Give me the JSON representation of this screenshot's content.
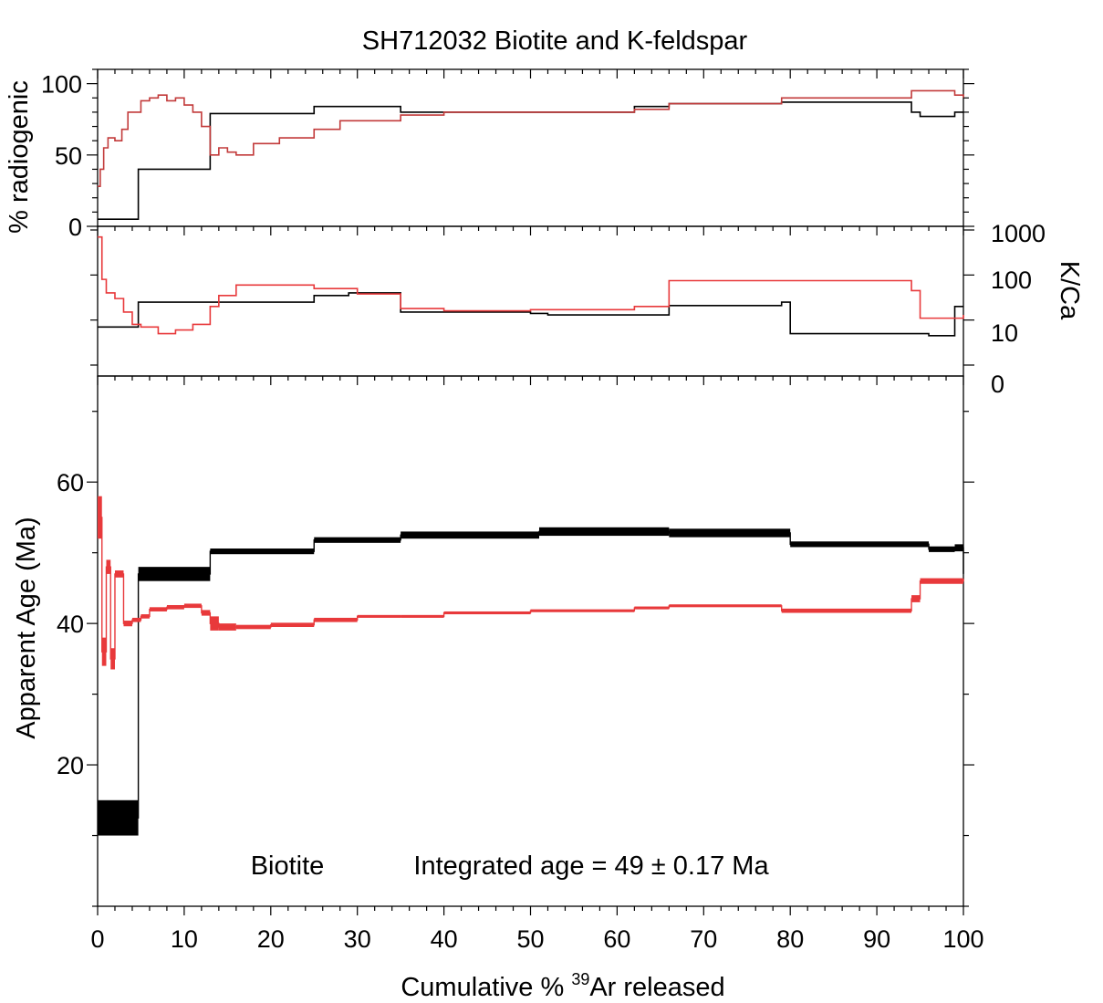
{
  "chart_data": [
    {
      "panel": "radiogenic",
      "type": "line",
      "title": "SH712032 Biotite and K-feldspar",
      "ylabel": "% radiogenic",
      "ylim": [
        0,
        110
      ],
      "yticks": [
        0,
        50,
        100
      ],
      "series": [
        {
          "color": "#000000",
          "x": [
            0,
            4.7,
            13,
            25,
            35,
            50,
            62,
            66,
            79,
            94,
            95,
            99,
            100
          ],
          "values": [
            5,
            40,
            79,
            84,
            80,
            80,
            84,
            86,
            87,
            80,
            77,
            80,
            80
          ]
        },
        {
          "color": "#c23a3a",
          "x": [
            0,
            0.3,
            0.7,
            1.2,
            2,
            2.8,
            3.5,
            5,
            6,
            7,
            8,
            9,
            10,
            11,
            12,
            13,
            14,
            15,
            16,
            18,
            21,
            25,
            28,
            35,
            40,
            50,
            62,
            66,
            79,
            94,
            99,
            100
          ],
          "values": [
            28,
            40,
            55,
            62,
            60,
            68,
            80,
            88,
            90,
            92,
            88,
            90,
            85,
            80,
            70,
            50,
            55,
            52,
            50,
            58,
            62,
            68,
            74,
            78,
            80,
            80,
            82,
            86,
            90,
            95,
            92,
            90
          ]
        }
      ]
    },
    {
      "panel": "K/Ca",
      "type": "line",
      "ylabel": "K/Ca",
      "ytick_labels": [
        "1000",
        "100",
        "10",
        "0"
      ],
      "series": [
        {
          "color": "#000000",
          "x": [
            0,
            0.8,
            4.7,
            13,
            25,
            29,
            35,
            50,
            52,
            66,
            79,
            80,
            96,
            99,
            100
          ],
          "values": [
            7,
            7,
            25,
            25,
            35,
            40,
            15,
            14,
            13,
            21,
            25,
            5,
            4.5,
            20,
            20
          ]
        },
        {
          "color": "#e8393b",
          "x": [
            0,
            0.5,
            1,
            2,
            3,
            4,
            5,
            7,
            9,
            11,
            13,
            14,
            16,
            20,
            25,
            30,
            35,
            40,
            50,
            62,
            66,
            79,
            94,
            95,
            100
          ],
          "values": [
            700,
            80,
            40,
            30,
            15,
            8,
            7,
            5,
            6,
            8,
            20,
            35,
            60,
            60,
            50,
            38,
            18,
            16,
            17,
            20,
            75,
            75,
            45,
            11,
            13
          ]
        }
      ]
    },
    {
      "panel": "apparent-age",
      "type": "line",
      "ylabel": "Apparent Age (Ma)",
      "xlabel_prefix": "Cumulative % ",
      "xlabel_sup": "39",
      "xlabel_suffix": "Ar released",
      "xlim": [
        0,
        100
      ],
      "ylim": [
        0,
        75
      ],
      "xticks": [
        0,
        10,
        20,
        30,
        40,
        50,
        60,
        70,
        80,
        90,
        100
      ],
      "yticks": [
        20,
        40,
        60
      ],
      "series": [
        {
          "color": "#000000",
          "x": [
            0,
            4.7,
            4.7,
            13,
            25,
            35,
            51,
            66,
            80,
            96,
            99,
            100
          ],
          "values": [
            12.5,
            12.5,
            47,
            50.2,
            51.8,
            52.5,
            53,
            52.8,
            51.2,
            50.5,
            50.7,
            47
          ],
          "errors": [
            2.5,
            2.5,
            1,
            0.4,
            0.4,
            0.5,
            0.6,
            0.6,
            0.4,
            0.4,
            0.5,
            1.5
          ]
        },
        {
          "color": "#e8393b",
          "x": [
            0,
            0.5,
            1,
            1.5,
            2,
            3,
            4,
            5,
            6,
            8,
            10,
            12,
            13,
            14,
            16,
            20,
            25,
            30,
            35,
            40,
            50,
            62,
            66,
            79,
            94,
            95,
            100
          ],
          "values": [
            55,
            36,
            48,
            35,
            47,
            40,
            40.5,
            41,
            42,
            42.3,
            42.5,
            41.5,
            40,
            39.5,
            39.5,
            39.8,
            40.5,
            41,
            41,
            41.5,
            41.8,
            42.2,
            42.5,
            41.8,
            43.5,
            46,
            46.3
          ],
          "errors": [
            3,
            2,
            1,
            1.5,
            0.5,
            0.4,
            0.3,
            0.3,
            0.3,
            0.3,
            0.3,
            0.4,
            1,
            0.5,
            0.3,
            0.3,
            0.3,
            0.2,
            0.2,
            0.2,
            0.2,
            0.2,
            0.2,
            0.3,
            0.5,
            0.4,
            0.4
          ]
        }
      ],
      "annotation": {
        "mineral": "Biotite",
        "integrated": "Integrated age = 49 ± 0.17 Ma"
      }
    }
  ]
}
